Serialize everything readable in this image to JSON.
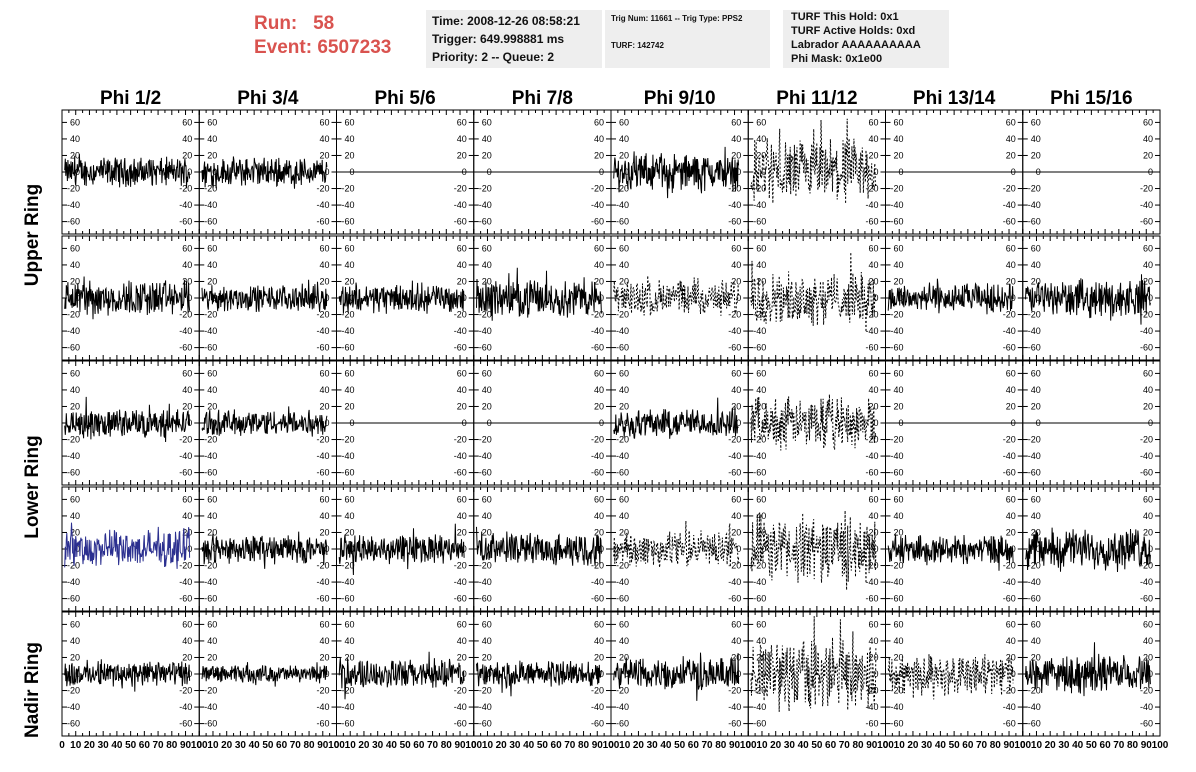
{
  "header": {
    "run_label": "Run:",
    "run_value": "58",
    "event_label": "Event:",
    "event_value": "6507233"
  },
  "info_box_1": {
    "time": "Time: 2008-12-26 08:58:21",
    "trigger": "Trigger: 649.998881 ms",
    "priority": "Priority: 2 -- Queue: 2"
  },
  "info_box_2": {
    "trig": "Trig Num: 11661 -- Trig Type: PPS2",
    "turf": "TURF: 142742"
  },
  "info_box_3": {
    "hold": "TURF This Hold: 0x1",
    "active": "TURF Active Holds: 0xd",
    "labrador": "Labrador AAAAAAAAAA",
    "mask": "Phi Mask: 0x1e00"
  },
  "columns": [
    "Phi 1/2",
    "Phi 3/4",
    "Phi 5/6",
    "Phi 7/8",
    "Phi 9/10",
    "Phi 11/12",
    "Phi 13/14",
    "Phi 15/16"
  ],
  "ring_labels": [
    "Upper Ring",
    "Lower Ring",
    "Nadir Ring"
  ],
  "y_ticks": [
    "60",
    "40",
    "20",
    "0",
    "-20",
    "-40",
    "-60"
  ],
  "x_ticks": [
    "0",
    "10",
    "20",
    "30",
    "40",
    "50",
    "60",
    "70",
    "80",
    "90",
    "100"
  ],
  "colors": {
    "trace": "#000000",
    "highlight_trace": "#2b2f8f",
    "run_text": "#d9534f",
    "info_bg": "#eeeeee"
  },
  "chart_data": {
    "type": "line",
    "xlim": [
      0,
      100
    ],
    "ylim": [
      -75,
      75
    ],
    "rows": [
      [
        "noise-20",
        "noise-20",
        "flat",
        "flat",
        "noise-25",
        "dashed-45",
        "flat",
        "flat"
      ],
      [
        "noise-25",
        "noise-18",
        "noise-20",
        "noise-25",
        "dashed-25",
        "dashed-35",
        "noise-20",
        "noise-25"
      ],
      [
        "noise-20",
        "noise-18",
        "flat",
        "flat",
        "noise-20",
        "dashed-35",
        "flat",
        "flat"
      ],
      [
        "blue-25",
        "noise-20",
        "noise-20",
        "noise-22",
        "dashed-25",
        "dashed-45",
        "noise-20",
        "noise-28"
      ],
      [
        "noise-18",
        "noise-12",
        "noise-20",
        "noise-18",
        "noise-22",
        "dashed-50",
        "dashed-28",
        "noise-25"
      ]
    ]
  }
}
